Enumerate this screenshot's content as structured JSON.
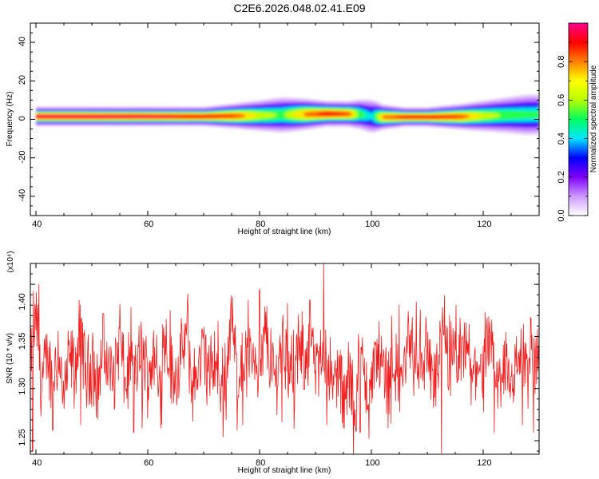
{
  "title": "C2E6.2026.048.02.41.E09",
  "chart_data": [
    {
      "type": "heatmap",
      "xlabel": "Height of straight line (km)",
      "ylabel": "Frequency (Hz)",
      "xlim": [
        39,
        130
      ],
      "ylim": [
        -50,
        50
      ],
      "x_ticks": [
        "40",
        "60",
        "80",
        "100",
        "120"
      ],
      "y_ticks": [
        "40",
        "20",
        "0",
        "-20",
        "-40"
      ],
      "ridge": {
        "x": [
          40,
          50,
          60,
          70,
          76,
          80,
          84,
          88,
          92,
          96,
          98,
          100,
          102,
          106,
          110,
          116,
          120,
          124,
          128,
          130
        ],
        "freq": [
          1.5,
          1.5,
          1.5,
          1.5,
          1.8,
          2.0,
          2.3,
          2.6,
          2.9,
          2.8,
          2.6,
          1.6,
          1.2,
          1.2,
          1.2,
          1.4,
          1.8,
          2.2,
          2.4,
          2.5
        ],
        "peak": [
          1.0,
          1.0,
          0.98,
          0.95,
          0.9,
          0.7,
          0.6,
          0.85,
          0.95,
          0.9,
          0.6,
          0.45,
          0.85,
          0.95,
          0.95,
          0.9,
          0.7,
          0.6,
          0.55,
          0.55
        ],
        "spread_hz": [
          3,
          3,
          3,
          3,
          4,
          5,
          6,
          5,
          4,
          4,
          5,
          6,
          4,
          3,
          3,
          4,
          5,
          6,
          7,
          7
        ]
      },
      "colorbar": {
        "label": "Normalized spectral amplitude",
        "range": [
          0,
          1
        ],
        "ticks": [
          "0.0",
          "0.2",
          "0.4",
          "0.6",
          "0.8"
        ],
        "colors": [
          "#ffffff",
          "#cc99ff",
          "#8000ff",
          "#0000ff",
          "#00e5ff",
          "#00ff60",
          "#b8ff00",
          "#ffff00",
          "#ff8000",
          "#ff0000",
          "#ff0090"
        ]
      }
    },
    {
      "type": "line",
      "xlabel": "Height of straight line (km)",
      "ylabel": "SNR (10 * v/v)",
      "y_exponent": "(x10⁴)",
      "xlim": [
        39,
        130
      ],
      "ylim": [
        1.237,
        1.42
      ],
      "x_ticks": [
        "40",
        "60",
        "80",
        "100",
        "120"
      ],
      "y_ticks": [
        "1.40",
        "1.35",
        "1.30",
        "1.25"
      ],
      "color": "#f02020",
      "series": [
        {
          "x_start": 39,
          "x_step": 1,
          "values": [
            1.32,
            1.37,
            1.3,
            1.33,
            1.31,
            1.34,
            1.29,
            1.33,
            1.32,
            1.36,
            1.31,
            1.33,
            1.3,
            1.34,
            1.32,
            1.31,
            1.35,
            1.3,
            1.33,
            1.32,
            1.34,
            1.31,
            1.33,
            1.3,
            1.36,
            1.32,
            1.31,
            1.33,
            1.35,
            1.3,
            1.32,
            1.34,
            1.31,
            1.33,
            1.3,
            1.32,
            1.37,
            1.31,
            1.33,
            1.32,
            1.34,
            1.3,
            1.36,
            1.32,
            1.31,
            1.35,
            1.33,
            1.3,
            1.34,
            1.32,
            1.36,
            1.31,
            1.33,
            1.34,
            1.3,
            1.32,
            1.29,
            1.31,
            1.28,
            1.33,
            1.31,
            1.3,
            1.34,
            1.32,
            1.31,
            1.33,
            1.3,
            1.32,
            1.35,
            1.31,
            1.33,
            1.34,
            1.3,
            1.32,
            1.36,
            1.31,
            1.33,
            1.32,
            1.35,
            1.3,
            1.33,
            1.31,
            1.34,
            1.32,
            1.3,
            1.33,
            1.31,
            1.32,
            1.34,
            1.31,
            1.33,
            1.32
          ],
          "highs": [
            [
              40.5,
              1.4
            ],
            [
              52,
              1.372
            ],
            [
              57,
              1.378
            ],
            [
              64,
              1.375
            ],
            [
              74,
              1.385
            ],
            [
              78,
              1.385
            ],
            [
              80,
              1.395
            ],
            [
              85,
              1.382
            ],
            [
              89,
              1.385
            ],
            [
              91.5,
              1.42
            ],
            [
              95,
              1.412
            ],
            [
              105,
              1.38
            ],
            [
              108,
              1.383
            ],
            [
              114,
              1.37
            ],
            [
              128.5,
              1.368
            ]
          ],
          "lows": [
            [
              39.4,
              1.24
            ],
            [
              43,
              1.26
            ],
            [
              48,
              1.265
            ],
            [
              57.5,
              1.258
            ],
            [
              59,
              1.262
            ],
            [
              74,
              1.27
            ],
            [
              77,
              1.265
            ],
            [
              84,
              1.268
            ],
            [
              92,
              1.265
            ],
            [
              95,
              1.262
            ],
            [
              98,
              1.258
            ],
            [
              99.6,
              1.252
            ],
            [
              103,
              1.262
            ],
            [
              112.5,
              1.238
            ],
            [
              122,
              1.258
            ],
            [
              127,
              1.265
            ],
            [
              129,
              1.258
            ]
          ]
        }
      ]
    }
  ]
}
